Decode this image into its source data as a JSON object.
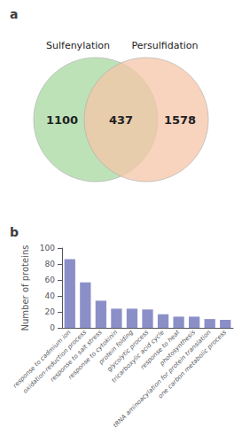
{
  "chart_data": [
    {
      "type": "venn",
      "title": "a",
      "series": [
        {
          "name": "Sulfenylation",
          "color": "#a8d8a0"
        },
        {
          "name": "Persulfidation",
          "color": "#f5c5a8"
        }
      ],
      "values": [
        1100,
        437,
        1578
      ]
    },
    {
      "type": "bar",
      "title": "b",
      "categories": [
        "response to cadmium ion",
        "oxidation-reduction process",
        "response to salt stress",
        "response to cytokinin",
        "protein folding",
        "glycolytic process",
        "tricarboxylic acid cycle",
        "response to heat",
        "photosynthesis",
        "tRNA aminoacylation for protein translation",
        "one carbon metabolic process"
      ],
      "values": [
        86,
        57,
        34,
        24,
        24,
        23,
        17,
        14,
        14,
        11,
        10
      ],
      "color": "#8b8fc8",
      "ylabel": "Number of proteins",
      "ylim": [
        0,
        100
      ],
      "yticks": [
        0,
        20,
        40,
        60,
        80,
        100
      ],
      "grid": false
    }
  ]
}
